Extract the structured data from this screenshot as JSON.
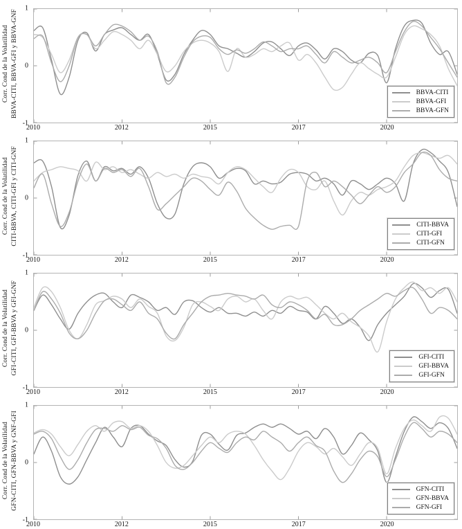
{
  "figure": {
    "kind": "four-stacked-line-subplots",
    "background": "#ffffff",
    "axis_color": "#b3b3b3",
    "text_color": "#111111"
  },
  "chart_data": [
    {
      "type": "line",
      "title": "",
      "ylabel_line1": "Corr. Cond de la Volatilidad",
      "ylabel_line2": "BBVA-CITI, BBVA-GFI y BBVA-GNF",
      "x_tick_labels": [
        "2010",
        "2012",
        "2015",
        "2017",
        "2020"
      ],
      "y_tick_labels": [
        "1",
        "0",
        "-1"
      ],
      "ylim": [
        -1,
        1
      ],
      "x_tick_units": [
        0,
        1,
        2,
        3,
        4
      ],
      "x_total_units": 4.8,
      "grid": false,
      "legend_position": "lower right",
      "t_step": 0.1,
      "series": [
        {
          "name": "BBVA-CITI",
          "color": "#8e8e8e",
          "values": [
            0.62,
            0.67,
            0.1,
            -0.5,
            -0.2,
            0.45,
            0.58,
            0.26,
            0.55,
            0.63,
            0.67,
            0.55,
            0.45,
            0.55,
            0.2,
            -0.25,
            -0.15,
            0.2,
            0.45,
            0.62,
            0.55,
            0.35,
            0.3,
            0.22,
            0.15,
            0.25,
            0.4,
            0.42,
            0.3,
            0.18,
            0.35,
            0.4,
            0.28,
            0.12,
            0.3,
            0.25,
            0.1,
            0.05,
            0.22,
            0.18,
            -0.3,
            0.3,
            0.7,
            0.8,
            0.75,
            0.4,
            0.2,
            0.25,
            -0.15
          ]
        },
        {
          "name": "BBVA-GFI",
          "color": "#cbcbcb",
          "values": [
            0.55,
            0.5,
            0.2,
            -0.12,
            0.1,
            0.5,
            0.55,
            0.3,
            0.45,
            0.6,
            0.55,
            0.45,
            0.3,
            0.45,
            0.2,
            -0.1,
            0.0,
            0.25,
            0.4,
            0.45,
            0.4,
            0.25,
            -0.1,
            0.3,
            0.15,
            0.2,
            0.3,
            0.25,
            0.35,
            0.4,
            0.1,
            0.2,
            0.05,
            -0.2,
            -0.42,
            -0.38,
            -0.15,
            0.05,
            -0.05,
            -0.15,
            -0.2,
            0.15,
            0.55,
            0.7,
            0.65,
            0.55,
            0.35,
            -0.05,
            -0.35
          ]
        },
        {
          "name": "BBVA-GFN",
          "color": "#ababab",
          "values": [
            0.48,
            0.52,
            0.05,
            -0.28,
            0.0,
            0.5,
            0.55,
            0.35,
            0.55,
            0.72,
            0.7,
            0.6,
            0.45,
            0.52,
            0.25,
            -0.3,
            -0.2,
            0.15,
            0.42,
            0.52,
            0.5,
            0.3,
            0.2,
            0.28,
            0.22,
            0.3,
            0.42,
            0.35,
            0.25,
            0.3,
            0.3,
            0.35,
            0.2,
            0.05,
            0.25,
            0.15,
            0.05,
            0.1,
            0.15,
            0.05,
            -0.12,
            0.25,
            0.6,
            0.78,
            0.7,
            0.5,
            0.3,
            0.05,
            -0.2
          ]
        }
      ]
    },
    {
      "type": "line",
      "title": "",
      "ylabel_line1": "Corr. Cond de la Volatilidad",
      "ylabel_line2": "CITI-BBVA, CITI-GFI y CITI-GNF",
      "x_tick_labels": [
        "2010",
        "2012",
        "2015",
        "2017",
        "2020"
      ],
      "y_tick_labels": [
        "1",
        "0",
        "-1"
      ],
      "ylim": [
        -1,
        1
      ],
      "x_tick_units": [
        0,
        1,
        2,
        3,
        4
      ],
      "x_total_units": 4.8,
      "grid": false,
      "legend_position": "lower right",
      "t_step": 0.1,
      "series": [
        {
          "name": "CITI-BBVA",
          "color": "#8e8e8e",
          "values": [
            0.62,
            0.65,
            0.2,
            -0.52,
            -0.3,
            0.4,
            0.65,
            0.3,
            0.55,
            0.48,
            0.52,
            0.42,
            0.55,
            0.35,
            -0.1,
            -0.35,
            -0.28,
            0.25,
            0.55,
            0.62,
            0.55,
            0.35,
            0.45,
            0.52,
            0.48,
            0.25,
            0.3,
            0.25,
            0.28,
            0.42,
            0.45,
            0.42,
            0.3,
            0.35,
            0.25,
            0.05,
            0.3,
            0.25,
            0.15,
            0.25,
            0.35,
            0.25,
            -0.05,
            0.6,
            0.85,
            0.8,
            0.65,
            0.45,
            -0.15
          ]
        },
        {
          "name": "CITI-GFI",
          "color": "#cbcbcb",
          "values": [
            0.3,
            0.45,
            0.5,
            0.55,
            0.52,
            0.48,
            0.3,
            0.63,
            0.5,
            0.55,
            0.45,
            0.5,
            0.42,
            0.35,
            0.45,
            0.38,
            0.42,
            0.35,
            0.42,
            0.38,
            0.35,
            0.25,
            0.45,
            0.55,
            0.5,
            0.35,
            0.2,
            0.1,
            0.35,
            0.5,
            0.45,
            0.2,
            0.15,
            0.3,
            -0.05,
            -0.3,
            -0.05,
            0.1,
            0.05,
            0.15,
            0.2,
            0.3,
            0.55,
            0.75,
            0.8,
            0.75,
            0.7,
            0.75,
            0.6
          ]
        },
        {
          "name": "CITI-GFN",
          "color": "#ababab",
          "values": [
            0.18,
            0.42,
            -0.1,
            -0.5,
            -0.25,
            0.3,
            0.6,
            0.3,
            0.52,
            0.45,
            0.5,
            0.38,
            0.52,
            0.2,
            -0.2,
            -0.1,
            0.05,
            0.2,
            0.35,
            0.3,
            0.15,
            0.05,
            0.28,
            0.12,
            -0.18,
            -0.35,
            -0.48,
            -0.55,
            -0.5,
            -0.48,
            -0.5,
            0.3,
            0.45,
            0.2,
            0.3,
            0.2,
            0.05,
            -0.1,
            0.05,
            0.2,
            0.1,
            0.2,
            0.45,
            0.6,
            0.8,
            0.75,
            0.5,
            0.35,
            0.3
          ]
        }
      ]
    },
    {
      "type": "line",
      "title": "",
      "ylabel_line1": "Corr. Cond de la Volatilidad",
      "ylabel_line2": "GFI-CITI, GFI-BBVA y GFI-GNF",
      "x_tick_labels": [
        "2010",
        "2012",
        "2015",
        "2017",
        "2020"
      ],
      "y_tick_labels": [
        "1",
        "0",
        "-1"
      ],
      "ylim": [
        -1,
        1
      ],
      "x_tick_units": [
        0,
        1,
        2,
        3,
        4
      ],
      "x_total_units": 4.8,
      "grid": false,
      "legend_position": "lower right",
      "t_step": 0.1,
      "series": [
        {
          "name": "GFI-CITI",
          "color": "#8e8e8e",
          "values": [
            0.35,
            0.62,
            0.45,
            0.2,
            0.02,
            0.3,
            0.5,
            0.62,
            0.65,
            0.5,
            0.4,
            0.62,
            0.58,
            0.5,
            0.35,
            0.4,
            0.28,
            0.5,
            0.52,
            0.4,
            0.32,
            0.4,
            0.3,
            0.3,
            0.25,
            0.32,
            0.25,
            0.35,
            0.3,
            0.42,
            0.35,
            0.32,
            0.2,
            0.42,
            0.3,
            0.12,
            0.2,
            0.05,
            -0.18,
            0.1,
            0.3,
            0.45,
            0.6,
            0.82,
            0.75,
            0.58,
            0.7,
            0.72,
            0.3
          ]
        },
        {
          "name": "GFI-BBVA",
          "color": "#cbcbcb",
          "values": [
            0.4,
            0.75,
            0.68,
            0.4,
            0.0,
            -0.15,
            0.1,
            0.45,
            0.52,
            0.6,
            0.55,
            0.4,
            0.55,
            0.42,
            0.3,
            -0.1,
            -0.18,
            0.05,
            0.45,
            0.5,
            0.42,
            0.35,
            0.55,
            0.6,
            0.5,
            0.55,
            0.35,
            0.2,
            0.5,
            0.6,
            0.55,
            0.58,
            0.45,
            0.3,
            0.2,
            0.3,
            0.15,
            0.05,
            -0.1,
            -0.38,
            0.15,
            0.55,
            0.75,
            0.85,
            0.7,
            0.75,
            0.65,
            0.75,
            0.5
          ]
        },
        {
          "name": "GFI-GFN",
          "color": "#ababab",
          "values": [
            0.35,
            0.68,
            0.55,
            0.3,
            -0.05,
            -0.15,
            0.0,
            0.3,
            0.52,
            0.55,
            0.45,
            0.35,
            0.5,
            0.3,
            0.2,
            -0.05,
            -0.15,
            0.1,
            0.3,
            0.5,
            0.6,
            0.62,
            0.65,
            0.62,
            0.6,
            0.55,
            0.62,
            0.45,
            0.4,
            0.5,
            0.45,
            0.35,
            0.2,
            0.28,
            0.1,
            0.1,
            0.2,
            0.35,
            0.45,
            0.55,
            0.65,
            0.6,
            0.7,
            0.75,
            0.55,
            0.3,
            0.4,
            0.35,
            0.2
          ]
        }
      ]
    },
    {
      "type": "line",
      "title": "",
      "ylabel_line1": "Corr. Cond de la Volatilidad",
      "ylabel_line2": "GFN-CITI, GFN-BBVA y GNF-GFI",
      "x_tick_labels": [
        "2010",
        "2012",
        "2015",
        "2017",
        "2020"
      ],
      "y_tick_labels": [
        "1",
        "0",
        "-1"
      ],
      "ylim": [
        -1,
        1
      ],
      "x_tick_units": [
        0,
        1,
        2,
        3,
        4
      ],
      "x_total_units": 4.8,
      "grid": false,
      "legend_position": "lower right",
      "t_step": 0.1,
      "series": [
        {
          "name": "GFN-CITI",
          "color": "#8e8e8e",
          "values": [
            0.15,
            0.45,
            0.2,
            -0.25,
            -0.38,
            -0.25,
            0.05,
            0.35,
            0.62,
            0.45,
            0.28,
            0.6,
            0.65,
            0.5,
            0.38,
            0.3,
            0.05,
            -0.08,
            0.02,
            0.48,
            0.5,
            0.32,
            0.22,
            0.48,
            0.52,
            0.62,
            0.68,
            0.62,
            0.68,
            0.6,
            0.5,
            0.55,
            0.42,
            0.6,
            0.45,
            0.15,
            0.3,
            0.52,
            0.4,
            0.2,
            -0.35,
            0.1,
            0.55,
            0.8,
            0.72,
            0.6,
            0.7,
            0.6,
            0.25
          ]
        },
        {
          "name": "GFN-BBVA",
          "color": "#cbcbcb",
          "values": [
            0.52,
            0.58,
            0.5,
            0.28,
            0.12,
            0.32,
            0.55,
            0.65,
            0.55,
            0.7,
            0.72,
            0.6,
            0.65,
            0.55,
            0.3,
            0.0,
            -0.1,
            -0.05,
            0.12,
            0.3,
            0.45,
            0.35,
            0.5,
            0.55,
            0.5,
            0.3,
            0.05,
            -0.15,
            -0.3,
            -0.1,
            0.2,
            0.35,
            0.28,
            0.15,
            0.25,
            0.1,
            -0.05,
            0.15,
            0.35,
            0.25,
            -0.2,
            0.25,
            0.6,
            0.75,
            0.65,
            0.55,
            0.8,
            0.78,
            0.5
          ]
        },
        {
          "name": "GFN-GFI",
          "color": "#ababab",
          "values": [
            0.5,
            0.55,
            0.42,
            0.1,
            -0.12,
            0.05,
            0.35,
            0.58,
            0.6,
            0.55,
            0.65,
            0.58,
            0.62,
            0.48,
            0.42,
            0.25,
            -0.05,
            -0.12,
            0.0,
            0.2,
            0.35,
            0.25,
            0.18,
            0.35,
            0.45,
            0.4,
            0.55,
            0.45,
            0.35,
            0.2,
            0.35,
            0.45,
            0.3,
            0.2,
            -0.15,
            -0.35,
            -0.2,
            0.05,
            0.2,
            0.1,
            -0.25,
            0.05,
            0.45,
            0.7,
            0.6,
            0.45,
            0.55,
            0.5,
            0.35
          ]
        }
      ]
    }
  ]
}
